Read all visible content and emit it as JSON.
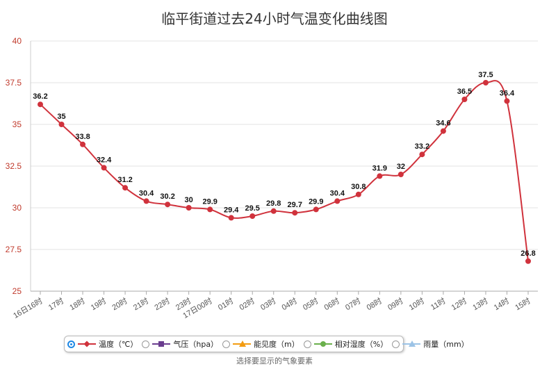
{
  "chart_data": {
    "type": "line",
    "title": "临平街道过去24小时气温变化曲线图",
    "ylim": [
      25,
      40
    ],
    "yticks": [
      "25",
      "27.5",
      "30",
      "32.5",
      "35",
      "37.5",
      "40"
    ],
    "ytick_values": [
      25,
      27.5,
      30,
      32.5,
      35,
      37.5,
      40
    ],
    "categories": [
      "16日16时",
      "17时",
      "18时",
      "19时",
      "20时",
      "21时",
      "22时",
      "23时",
      "17日00时",
      "01时",
      "02时",
      "03时",
      "04时",
      "05时",
      "06时",
      "07时",
      "08时",
      "09时",
      "10时",
      "11时",
      "12时",
      "13时",
      "14时",
      "15时"
    ],
    "series": [
      {
        "name": "温度（℃）",
        "color": "#d0323c",
        "values": [
          36.2,
          35,
          33.8,
          32.4,
          31.2,
          30.4,
          30.2,
          30,
          29.9,
          29.4,
          29.5,
          29.8,
          29.7,
          29.9,
          30.4,
          30.8,
          31.9,
          32,
          33.2,
          34.6,
          36.5,
          37.5,
          36.4,
          26.8
        ],
        "labels": [
          "36.2",
          "35",
          "33.8",
          "32.4",
          "31.2",
          "30.4",
          "30.2",
          "30",
          "29.9",
          "29.4",
          "29.5",
          "29.8",
          "29.7",
          "29.9",
          "30.4",
          "30.8",
          "31.9",
          "32",
          "33.2",
          "34.6",
          "36.5",
          "37.5",
          "36.4",
          "26.8"
        ]
      }
    ],
    "grid": true,
    "legend": "bottom"
  },
  "legend": {
    "items": [
      {
        "label": "温度（℃）",
        "color": "#d0323c",
        "marker": "diamond",
        "selected": true
      },
      {
        "label": "气压（hpa）",
        "color": "#6a3d8f",
        "marker": "square",
        "selected": false
      },
      {
        "label": "能见度（m）",
        "color": "#f39c12",
        "marker": "triangle",
        "selected": false
      },
      {
        "label": "相对湿度（%）",
        "color": "#6ab04c",
        "marker": "circle",
        "selected": false
      },
      {
        "label": "雨量（mm）",
        "color": "#9cc3e6",
        "marker": "triangle",
        "selected": false
      }
    ]
  },
  "caption": "选择要显示的气象要素"
}
